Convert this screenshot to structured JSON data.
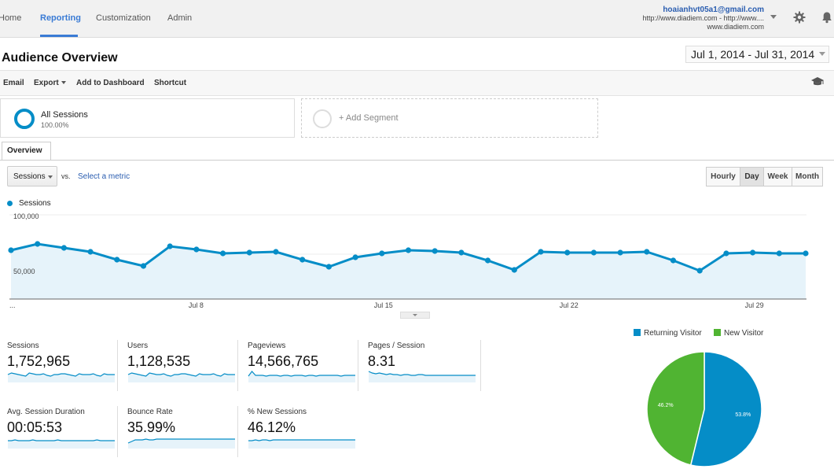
{
  "nav": {
    "tabs": [
      {
        "label": "Home"
      },
      {
        "label": "Reporting"
      },
      {
        "label": "Customization"
      },
      {
        "label": "Admin"
      }
    ],
    "active_tab": "Reporting",
    "account_email": "hoaianhvt05a1@gmail.com",
    "account_property": "http://www.diadiem.com - http://www....",
    "account_view": "www.diadiem.com",
    "icons": [
      "settings-gear-icon",
      "notifications-bell-icon"
    ]
  },
  "page": {
    "title": "Audience Overview",
    "date_range": "Jul 1, 2014 - Jul 31, 2014"
  },
  "toolbar": {
    "email": "Email",
    "export": "Export",
    "add_to_dashboard": "Add to Dashboard",
    "shortcut": "Shortcut",
    "icon": "graduation-cap-icon"
  },
  "segments": {
    "all_sessions": "All Sessions",
    "all_sessions_pct": "100.00%",
    "add_segment": "+ Add Segment"
  },
  "tabs": {
    "overview": "Overview"
  },
  "controls": {
    "metric": "Sessions",
    "vs": "vs.",
    "select_metric": "Select a metric",
    "granularity": [
      "Hourly",
      "Day",
      "Week",
      "Month"
    ],
    "active_granularity": "Day"
  },
  "chart_data": {
    "type": "area",
    "series": [
      {
        "name": "Sessions",
        "values": [
          62000,
          70000,
          65000,
          60000,
          50000,
          42000,
          67000,
          63000,
          58000,
          59000,
          60000,
          50000,
          41000,
          53000,
          58000,
          62000,
          61000,
          59000,
          49000,
          37000,
          60000,
          59000,
          59000,
          59000,
          60000,
          49000,
          36000,
          58000,
          59000,
          58000,
          58000
        ]
      }
    ],
    "y_ticks": [
      "100,000",
      "50,000"
    ],
    "ylim": [
      0,
      100000
    ],
    "x_tick_labels": [
      "...",
      "Jul 8",
      "Jul 15",
      "Jul 22",
      "Jul 29"
    ],
    "color": "#058dc7",
    "fill": "#e6f3fa"
  },
  "metrics": [
    {
      "label": "Sessions",
      "value": "1,752,965"
    },
    {
      "label": "Users",
      "value": "1,128,535"
    },
    {
      "label": "Pageviews",
      "value": "14,566,765"
    },
    {
      "label": "Pages / Session",
      "value": "8.31"
    },
    {
      "label": "Avg. Session Duration",
      "value": "00:05:53"
    },
    {
      "label": "Bounce Rate",
      "value": "35.99%"
    },
    {
      "label": "% New Sessions",
      "value": "46.12%"
    }
  ],
  "pie": {
    "legend": [
      {
        "name": "Returning Visitor",
        "color": "#058dc7"
      },
      {
        "name": "New Visitor",
        "color": "#50b432"
      }
    ],
    "slices": [
      {
        "name": "Returning Visitor",
        "value": 53.8,
        "label": "53.8%",
        "color": "#058dc7"
      },
      {
        "name": "New Visitor",
        "value": 46.2,
        "label": "46.2%",
        "color": "#50b432"
      }
    ]
  }
}
